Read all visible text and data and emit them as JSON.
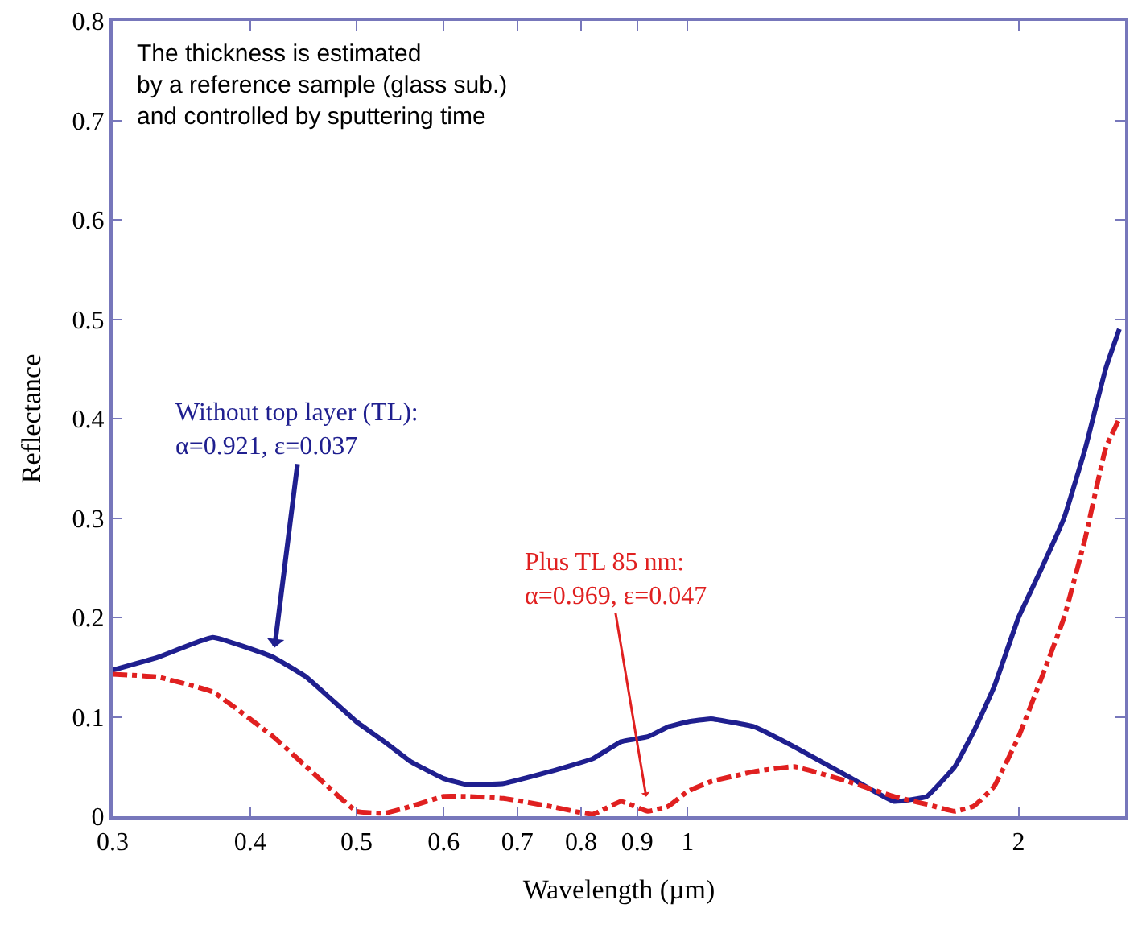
{
  "chart_data": {
    "type": "line",
    "xlabel": "Wavelength (µm)",
    "ylabel": "Reflectance",
    "log": "x",
    "marker": "none",
    "xlim": [
      0.3,
      2.5
    ],
    "xticks": [
      0.3,
      0.4,
      0.5,
      0.6,
      0.7,
      0.8,
      0.9,
      1,
      2
    ],
    "ylim": [
      0,
      0.8
    ],
    "yticks": [
      0,
      0.1,
      0.2,
      0.3,
      0.4,
      0.5,
      0.6,
      0.7,
      0.8
    ],
    "x": [
      0.3,
      0.33,
      0.37,
      0.42,
      0.45,
      0.5,
      0.53,
      0.56,
      0.6,
      0.63,
      0.68,
      0.75,
      0.82,
      0.87,
      0.92,
      0.96,
      1.0,
      1.05,
      1.15,
      1.25,
      1.4,
      1.54,
      1.65,
      1.75,
      1.82,
      1.9,
      2.0,
      2.1,
      2.2,
      2.3,
      2.4,
      2.47
    ],
    "series": [
      {
        "color": "#1f1f8f",
        "line_style": "solid",
        "values": [
          0.147,
          0.16,
          0.18,
          0.16,
          0.14,
          0.095,
          0.075,
          0.055,
          0.038,
          0.032,
          0.033,
          0.045,
          0.058,
          0.075,
          0.08,
          0.09,
          0.095,
          0.098,
          0.09,
          0.07,
          0.04,
          0.015,
          0.02,
          0.05,
          0.085,
          0.13,
          0.2,
          0.25,
          0.3,
          0.37,
          0.45,
          0.49
        ]
      },
      {
        "color": "#e02020",
        "line_style": "dashed",
        "values": [
          0.143,
          0.14,
          0.125,
          0.08,
          0.05,
          0.005,
          0.003,
          0.01,
          0.02,
          0.02,
          0.018,
          0.01,
          0.002,
          0.015,
          0.005,
          0.01,
          0.025,
          0.035,
          0.045,
          0.05,
          0.035,
          0.02,
          0.012,
          0.005,
          0.01,
          0.03,
          0.08,
          0.14,
          0.2,
          0.28,
          0.37,
          0.4
        ]
      }
    ],
    "annotations": [
      "The thickness is estimated\nby a reference sample (glass sub.)\nand controlled by sputtering time",
      {
        "text": "Without top layer (TL):\nα=0.921, ε=0.037",
        "x": 0.42,
        "y": 0.16
      },
      {
        "text": "Plus TL 85 nm:\nα=0.969, ε=0.047",
        "x": 0.92,
        "y": 0.01
      }
    ]
  }
}
